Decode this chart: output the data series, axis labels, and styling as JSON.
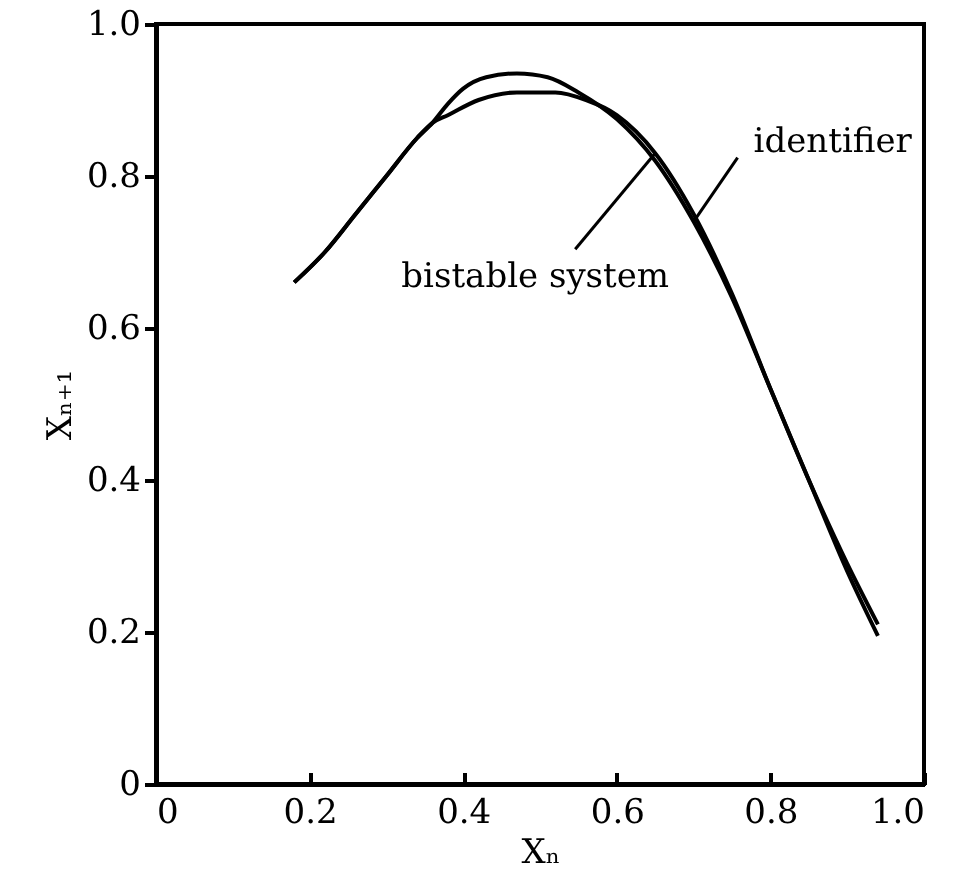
{
  "chart_data": {
    "type": "line",
    "xlabel": "Xₙ",
    "ylabel": "Xₙ₊₁",
    "xlim": [
      0,
      1
    ],
    "ylim": [
      0,
      1
    ],
    "xticks": [
      {
        "value": 0,
        "label": "0"
      },
      0.2,
      0.4,
      0.6,
      0.8,
      {
        "value": 1,
        "label": "1.0"
      }
    ],
    "yticks": [
      {
        "value": 0,
        "label": "0"
      },
      0.2,
      0.4,
      0.6,
      0.8,
      {
        "value": 1,
        "label": "1.0"
      }
    ],
    "grid": false,
    "marker": "none",
    "line_style": "solid",
    "series": [
      {
        "name": "identifier",
        "color": "#000000",
        "x": [
          0.18,
          0.22,
          0.26,
          0.3,
          0.34,
          0.36,
          0.38,
          0.4,
          0.43,
          0.47,
          0.51,
          0.55,
          0.6,
          0.65,
          0.7,
          0.75,
          0.8,
          0.85,
          0.9,
          0.94
        ],
        "values": [
          0.66,
          0.7,
          0.75,
          0.8,
          0.85,
          0.87,
          0.895,
          0.915,
          0.93,
          0.935,
          0.93,
          0.91,
          0.875,
          0.82,
          0.74,
          0.64,
          0.52,
          0.4,
          0.29,
          0.21
        ]
      },
      {
        "name": "bistable system",
        "color": "#000000",
        "x": [
          0.18,
          0.22,
          0.26,
          0.3,
          0.34,
          0.36,
          0.38,
          0.42,
          0.47,
          0.52,
          0.56,
          0.6,
          0.65,
          0.7,
          0.75,
          0.8,
          0.85,
          0.9,
          0.94
        ],
        "values": [
          0.66,
          0.7,
          0.75,
          0.8,
          0.85,
          0.87,
          0.88,
          0.9,
          0.91,
          0.91,
          0.9,
          0.88,
          0.83,
          0.75,
          0.645,
          0.52,
          0.4,
          0.28,
          0.195
        ]
      }
    ]
  }
}
